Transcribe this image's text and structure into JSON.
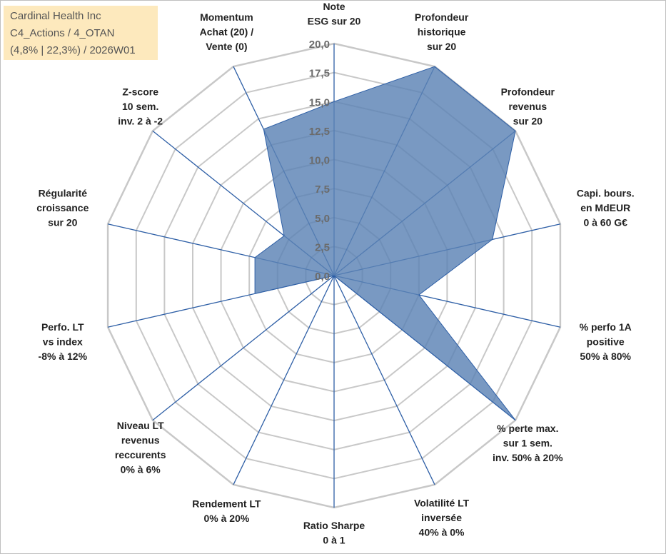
{
  "title_box": {
    "line1": "Cardinal Health Inc",
    "line2": "C4_Actions / 4_OTAN",
    "line3": "(4,8% | 22,3%) / 2026W01"
  },
  "colors": {
    "fill": "#5b82b5",
    "line": "#2e5fa6",
    "grid": "#c8c8c8",
    "title_bg": "#fde9bd"
  },
  "chart_data": {
    "type": "radar",
    "rmin": 0,
    "rmax": 20,
    "tick_values": [
      0,
      2.5,
      5,
      7.5,
      10,
      12.5,
      15,
      17.5,
      20
    ],
    "tick_labels": [
      "0,0",
      "2,5",
      "5,0",
      "7,5",
      "10,0",
      "12,5",
      "15,0",
      "17,5",
      "20,0"
    ],
    "axes": [
      {
        "label": [
          "Note",
          "ESG sur 20"
        ],
        "value": 15.0
      },
      {
        "label": [
          "Profondeur",
          "historique",
          "sur 20"
        ],
        "value": 20.0
      },
      {
        "label": [
          "Profondeur",
          "revenus",
          "sur 20"
        ],
        "value": 20.0
      },
      {
        "label": [
          "Capi. bours.",
          "en MdEUR",
          "0 à 60 G€"
        ],
        "value": 14.0
      },
      {
        "label": [
          "% perfo 1A",
          "positive",
          "50% à 80%"
        ],
        "value": 7.5
      },
      {
        "label": [
          "% perte max.",
          "sur 1 sem.",
          "inv. 50% à 20%"
        ],
        "value": 20.0
      },
      {
        "label": [
          "Volatilité LT",
          "inversée",
          "40% à 0%"
        ],
        "value": 0.0
      },
      {
        "label": [
          "Ratio Sharpe",
          "0 à 1"
        ],
        "value": 0.0
      },
      {
        "label": [
          "Rendement LT",
          "0% à 20%"
        ],
        "value": 0.0
      },
      {
        "label": [
          "Niveau LT",
          "revenus",
          "reccurents",
          "0% à 6%"
        ],
        "value": 0.0
      },
      {
        "label": [
          "Perfo. LT",
          "vs index",
          "-8% à 12%"
        ],
        "value": 7.0
      },
      {
        "label": [
          "Régularité",
          "croissance",
          "sur 20"
        ],
        "value": 7.0
      },
      {
        "label": [
          "Z-score",
          "10 sem.",
          "inv. 2 à -2"
        ],
        "value": 5.5
      },
      {
        "label": [
          "Momentum",
          "Achat (20) /",
          "Vente (0)"
        ],
        "value": 14.0
      }
    ]
  }
}
